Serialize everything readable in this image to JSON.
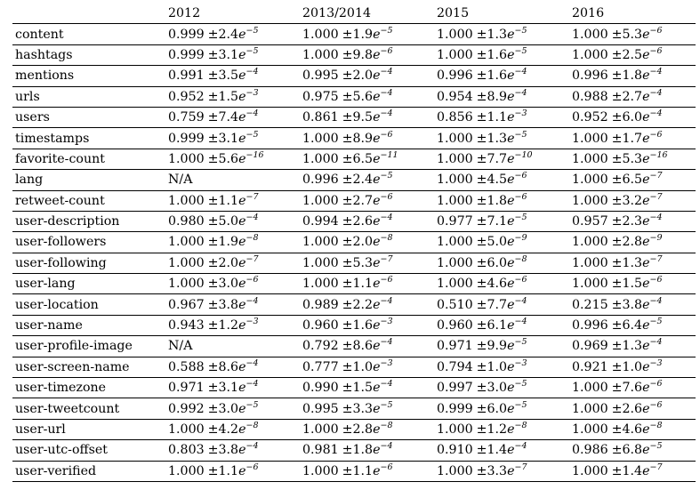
{
  "header": [
    "",
    "2012",
    "2013/2014",
    "2015",
    "2016"
  ],
  "rows": [
    {
      "name": "content",
      "cells": [
        {
          "mean": "0.999",
          "sd": "2.4",
          "exp": "−5"
        },
        {
          "mean": "1.000",
          "sd": "1.9",
          "exp": "−5"
        },
        {
          "mean": "1.000",
          "sd": "1.3",
          "exp": "−5"
        },
        {
          "mean": "1.000",
          "sd": "5.3",
          "exp": "−6"
        }
      ]
    },
    {
      "name": "hashtags",
      "cells": [
        {
          "mean": "0.999",
          "sd": "3.1",
          "exp": "−5"
        },
        {
          "mean": "1.000",
          "sd": "9.8",
          "exp": "−6"
        },
        {
          "mean": "1.000",
          "sd": "1.6",
          "exp": "−5"
        },
        {
          "mean": "1.000",
          "sd": "2.5",
          "exp": "−6"
        }
      ]
    },
    {
      "name": "mentions",
      "cells": [
        {
          "mean": "0.991",
          "sd": "3.5",
          "exp": "−4"
        },
        {
          "mean": "0.995",
          "sd": "2.0",
          "exp": "−4"
        },
        {
          "mean": "0.996",
          "sd": "1.6",
          "exp": "−4"
        },
        {
          "mean": "0.996",
          "sd": "1.8",
          "exp": "−4"
        }
      ]
    },
    {
      "name": "urls",
      "cells": [
        {
          "mean": "0.952",
          "sd": "1.5",
          "exp": "−3"
        },
        {
          "mean": "0.975",
          "sd": "5.6",
          "exp": "−4"
        },
        {
          "mean": "0.954",
          "sd": "8.9",
          "exp": "−4"
        },
        {
          "mean": "0.988",
          "sd": "2.7",
          "exp": "−4"
        }
      ]
    },
    {
      "name": "users",
      "cells": [
        {
          "mean": "0.759",
          "sd": "7.4",
          "exp": "−4"
        },
        {
          "mean": "0.861",
          "sd": "9.5",
          "exp": "−4"
        },
        {
          "mean": "0.856",
          "sd": "1.1",
          "exp": "−3"
        },
        {
          "mean": "0.952",
          "sd": "6.0",
          "exp": "−4"
        }
      ]
    },
    {
      "name": "timestamps",
      "cells": [
        {
          "mean": "0.999",
          "sd": "3.1",
          "exp": "−5"
        },
        {
          "mean": "1.000",
          "sd": "8.9",
          "exp": "−6"
        },
        {
          "mean": "1.000",
          "sd": "1.3",
          "exp": "−5"
        },
        {
          "mean": "1.000",
          "sd": "1.7",
          "exp": "−6"
        }
      ]
    },
    {
      "name": "favorite-count",
      "cells": [
        {
          "mean": "1.000",
          "sd": "5.6",
          "exp": "−16"
        },
        {
          "mean": "1.000",
          "sd": "6.5",
          "exp": "−11"
        },
        {
          "mean": "1.000",
          "sd": "7.7",
          "exp": "−10"
        },
        {
          "mean": "1.000",
          "sd": "5.3",
          "exp": "−16"
        }
      ]
    },
    {
      "name": "lang",
      "cells": [
        {
          "text": "N/A"
        },
        {
          "mean": "0.996",
          "sd": "2.4",
          "exp": "−5"
        },
        {
          "mean": "1.000",
          "sd": "4.5",
          "exp": "−6"
        },
        {
          "mean": "1.000",
          "sd": "6.5",
          "exp": "−7"
        }
      ]
    },
    {
      "name": "retweet-count",
      "cells": [
        {
          "mean": "1.000",
          "sd": "1.1",
          "exp": "−7"
        },
        {
          "mean": "1.000",
          "sd": "2.7",
          "exp": "−6"
        },
        {
          "mean": "1.000",
          "sd": "1.8",
          "exp": "−6"
        },
        {
          "mean": "1.000",
          "sd": "3.2",
          "exp": "−7"
        }
      ]
    },
    {
      "name": "user-description",
      "cells": [
        {
          "mean": "0.980",
          "sd": "5.0",
          "exp": "−4"
        },
        {
          "mean": "0.994",
          "sd": "2.6",
          "exp": "−4"
        },
        {
          "mean": "0.977",
          "sd": "7.1",
          "exp": "−5"
        },
        {
          "mean": "0.957",
          "sd": "2.3",
          "exp": "−4"
        }
      ]
    },
    {
      "name": "user-followers",
      "cells": [
        {
          "mean": "1.000",
          "sd": "1.9",
          "exp": "−8"
        },
        {
          "mean": "1.000",
          "sd": "2.0",
          "exp": "−8"
        },
        {
          "mean": "1.000",
          "sd": "5.0",
          "exp": "−9"
        },
        {
          "mean": "1.000",
          "sd": "2.8",
          "exp": "−9"
        }
      ]
    },
    {
      "name": "user-following",
      "cells": [
        {
          "mean": "1.000",
          "sd": "2.0",
          "exp": "−7"
        },
        {
          "mean": "1.000",
          "sd": "5.3",
          "exp": "−7"
        },
        {
          "mean": "1.000",
          "sd": "6.0",
          "exp": "−8"
        },
        {
          "mean": "1.000",
          "sd": "1.3",
          "exp": "−7"
        }
      ]
    },
    {
      "name": "user-lang",
      "cells": [
        {
          "mean": "1.000",
          "sd": "3.0",
          "exp": "−6"
        },
        {
          "mean": "1.000",
          "sd": "1.1",
          "exp": "−6"
        },
        {
          "mean": "1.000",
          "sd": "4.6",
          "exp": "−6"
        },
        {
          "mean": "1.000",
          "sd": "1.5",
          "exp": "−6"
        }
      ]
    },
    {
      "name": "user-location",
      "cells": [
        {
          "mean": "0.967",
          "sd": "3.8",
          "exp": "−4"
        },
        {
          "mean": "0.989",
          "sd": "2.2",
          "exp": "−4"
        },
        {
          "mean": "0.510",
          "sd": "7.7",
          "exp": "−4"
        },
        {
          "mean": "0.215",
          "sd": "3.8",
          "exp": "−4"
        }
      ]
    },
    {
      "name": "user-name",
      "cells": [
        {
          "mean": "0.943",
          "sd": "1.2",
          "exp": "−3"
        },
        {
          "mean": "0.960",
          "sd": "1.6",
          "exp": "−3"
        },
        {
          "mean": "0.960",
          "sd": "6.1",
          "exp": "−4"
        },
        {
          "mean": "0.996",
          "sd": "6.4",
          "exp": "−5"
        }
      ]
    },
    {
      "name": "user-profile-image",
      "cells": [
        {
          "text": "N/A"
        },
        {
          "mean": "0.792",
          "sd": "8.6",
          "exp": "−4"
        },
        {
          "mean": "0.971",
          "sd": "9.9",
          "exp": "−5"
        },
        {
          "mean": "0.969",
          "sd": "1.3",
          "exp": "−4"
        }
      ]
    },
    {
      "name": "user-screen-name",
      "cells": [
        {
          "mean": "0.588",
          "sd": "8.6",
          "exp": "−4"
        },
        {
          "mean": "0.777",
          "sd": "1.0",
          "exp": "−3"
        },
        {
          "mean": "0.794",
          "sd": "1.0",
          "exp": "−3"
        },
        {
          "mean": "0.921",
          "sd": "1.0",
          "exp": "−3"
        }
      ]
    },
    {
      "name": "user-timezone",
      "cells": [
        {
          "mean": "0.971",
          "sd": "3.1",
          "exp": "−4"
        },
        {
          "mean": "0.990",
          "sd": "1.5",
          "exp": "−4"
        },
        {
          "mean": "0.997",
          "sd": "3.0",
          "exp": "−5"
        },
        {
          "mean": "1.000",
          "sd": "7.6",
          "exp": "−6"
        }
      ]
    },
    {
      "name": "user-tweetcount",
      "cells": [
        {
          "mean": "0.992",
          "sd": "3.0",
          "exp": "−5"
        },
        {
          "mean": "0.995",
          "sd": "3.3",
          "exp": "−5"
        },
        {
          "mean": "0.999",
          "sd": "6.0",
          "exp": "−5"
        },
        {
          "mean": "1.000",
          "sd": "2.6",
          "exp": "−6"
        }
      ]
    },
    {
      "name": "user-url",
      "cells": [
        {
          "mean": "1.000",
          "sd": "4.2",
          "exp": "−8"
        },
        {
          "mean": "1.000",
          "sd": "2.8",
          "exp": "−8"
        },
        {
          "mean": "1.000",
          "sd": "1.2",
          "exp": "−8"
        },
        {
          "mean": "1.000",
          "sd": "4.6",
          "exp": "−8"
        }
      ]
    },
    {
      "name": "user-utc-offset",
      "cells": [
        {
          "mean": "0.803",
          "sd": "3.8",
          "exp": "−4"
        },
        {
          "mean": "0.981",
          "sd": "1.8",
          "exp": "−4"
        },
        {
          "mean": "0.910",
          "sd": "1.4",
          "exp": "−4"
        },
        {
          "mean": "0.986",
          "sd": "6.8",
          "exp": "−5"
        }
      ]
    },
    {
      "name": "user-verified",
      "cells": [
        {
          "mean": "1.000",
          "sd": "1.1",
          "exp": "−6"
        },
        {
          "mean": "1.000",
          "sd": "1.1",
          "exp": "−6"
        },
        {
          "mean": "1.000",
          "sd": "3.3",
          "exp": "−7"
        },
        {
          "mean": "1.000",
          "sd": "1.4",
          "exp": "−7"
        }
      ]
    }
  ]
}
